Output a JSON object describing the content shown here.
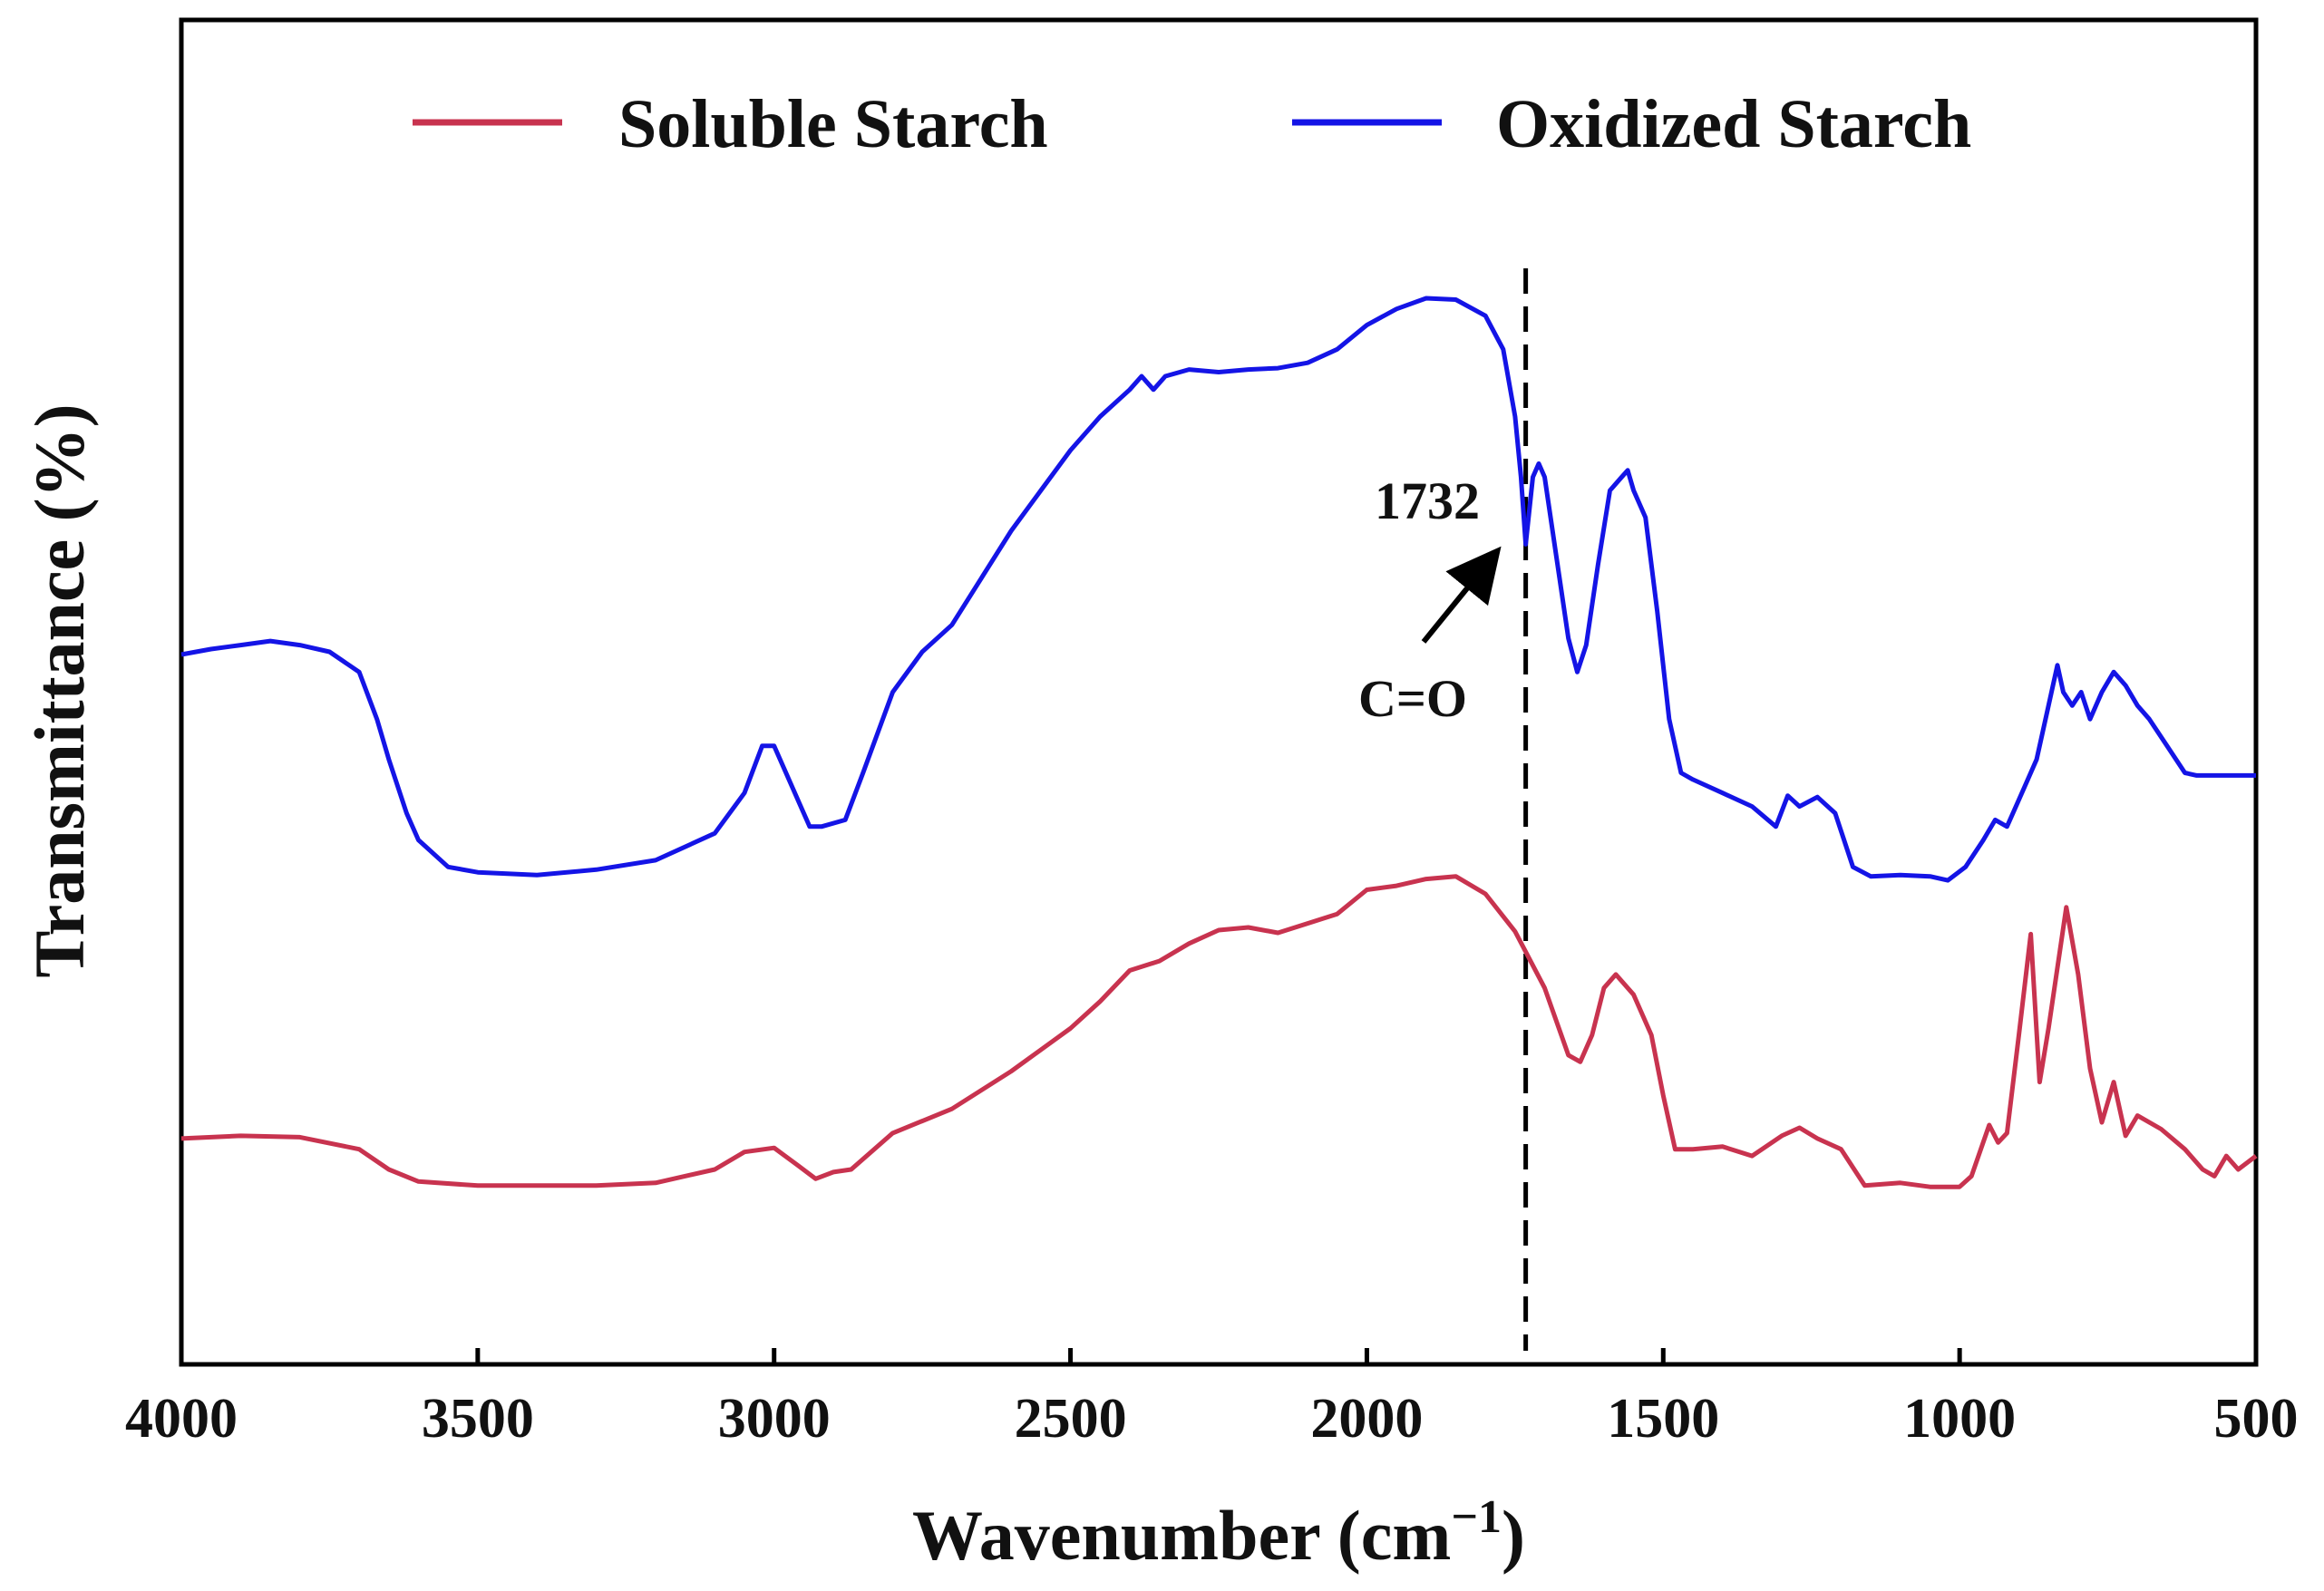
{
  "chart_data": {
    "type": "line",
    "title": "",
    "xlabel": "Wavenumber (cm",
    "xlabel_sup": "−1",
    "xlabel_close": ")",
    "ylabel": "Transmittance (%)",
    "xlim": [
      4000,
      500
    ],
    "ylim": [
      0,
      100
    ],
    "x_ticks": [
      4000,
      3500,
      3000,
      2500,
      2000,
      1500,
      1000,
      500
    ],
    "grid": false,
    "legend_position": "top",
    "series": [
      {
        "name": "Soluble Starch",
        "color": "#c8334f",
        "points": [
          [
            4000,
            16.8
          ],
          [
            3900,
            17.0
          ],
          [
            3800,
            16.9
          ],
          [
            3700,
            16.0
          ],
          [
            3650,
            14.5
          ],
          [
            3600,
            13.6
          ],
          [
            3500,
            13.3
          ],
          [
            3400,
            13.3
          ],
          [
            3300,
            13.3
          ],
          [
            3200,
            13.5
          ],
          [
            3100,
            14.5
          ],
          [
            3050,
            15.8
          ],
          [
            3000,
            16.1
          ],
          [
            2960,
            14.8
          ],
          [
            2930,
            13.8
          ],
          [
            2900,
            14.3
          ],
          [
            2870,
            14.5
          ],
          [
            2800,
            17.2
          ],
          [
            2700,
            19.0
          ],
          [
            2600,
            21.8
          ],
          [
            2500,
            25.0
          ],
          [
            2450,
            27.0
          ],
          [
            2400,
            29.3
          ],
          [
            2350,
            30.0
          ],
          [
            2300,
            31.3
          ],
          [
            2250,
            32.3
          ],
          [
            2200,
            32.5
          ],
          [
            2150,
            32.1
          ],
          [
            2100,
            32.8
          ],
          [
            2050,
            33.5
          ],
          [
            2000,
            35.3
          ],
          [
            1950,
            35.6
          ],
          [
            1900,
            36.1
          ],
          [
            1850,
            36.3
          ],
          [
            1800,
            35.0
          ],
          [
            1750,
            32.2
          ],
          [
            1700,
            28.0
          ],
          [
            1660,
            23.0
          ],
          [
            1640,
            22.5
          ],
          [
            1620,
            24.5
          ],
          [
            1600,
            28.0
          ],
          [
            1580,
            29.0
          ],
          [
            1550,
            27.5
          ],
          [
            1520,
            24.5
          ],
          [
            1500,
            20.0
          ],
          [
            1480,
            16.0
          ],
          [
            1450,
            16.0
          ],
          [
            1400,
            16.2
          ],
          [
            1350,
            15.5
          ],
          [
            1300,
            17.0
          ],
          [
            1270,
            17.6
          ],
          [
            1240,
            16.8
          ],
          [
            1200,
            16.0
          ],
          [
            1160,
            13.3
          ],
          [
            1100,
            13.5
          ],
          [
            1050,
            13.2
          ],
          [
            1000,
            13.2
          ],
          [
            980,
            14.0
          ],
          [
            950,
            17.8
          ],
          [
            935,
            16.5
          ],
          [
            920,
            17.2
          ],
          [
            900,
            24.5
          ],
          [
            880,
            32.0
          ],
          [
            865,
            21.0
          ],
          [
            850,
            25.0
          ],
          [
            820,
            34.0
          ],
          [
            800,
            29.0
          ],
          [
            780,
            22.0
          ],
          [
            760,
            18.0
          ],
          [
            740,
            21.0
          ],
          [
            720,
            17.0
          ],
          [
            700,
            18.5
          ],
          [
            660,
            17.5
          ],
          [
            620,
            16.0
          ],
          [
            590,
            14.5
          ],
          [
            570,
            14.0
          ],
          [
            550,
            15.5
          ],
          [
            530,
            14.5
          ],
          [
            500,
            15.5
          ]
        ]
      },
      {
        "name": "Oxidized Starch",
        "color": "#1414e6",
        "points": [
          [
            4000,
            52.8
          ],
          [
            3950,
            53.2
          ],
          [
            3900,
            53.5
          ],
          [
            3850,
            53.8
          ],
          [
            3800,
            53.5
          ],
          [
            3750,
            53.0
          ],
          [
            3700,
            51.5
          ],
          [
            3670,
            48.0
          ],
          [
            3650,
            45.0
          ],
          [
            3620,
            41.0
          ],
          [
            3600,
            39.0
          ],
          [
            3550,
            37.0
          ],
          [
            3500,
            36.6
          ],
          [
            3400,
            36.4
          ],
          [
            3300,
            36.8
          ],
          [
            3200,
            37.5
          ],
          [
            3100,
            39.5
          ],
          [
            3050,
            42.5
          ],
          [
            3020,
            46.0
          ],
          [
            3000,
            46.0
          ],
          [
            2970,
            43.0
          ],
          [
            2940,
            40.0
          ],
          [
            2920,
            40.0
          ],
          [
            2880,
            40.5
          ],
          [
            2850,
            44.0
          ],
          [
            2800,
            50.0
          ],
          [
            2750,
            53.0
          ],
          [
            2700,
            55.0
          ],
          [
            2650,
            58.5
          ],
          [
            2600,
            62.0
          ],
          [
            2550,
            65.0
          ],
          [
            2500,
            68.0
          ],
          [
            2450,
            70.5
          ],
          [
            2400,
            72.5
          ],
          [
            2380,
            73.5
          ],
          [
            2360,
            72.5
          ],
          [
            2340,
            73.5
          ],
          [
            2300,
            74.0
          ],
          [
            2250,
            73.8
          ],
          [
            2200,
            74.0
          ],
          [
            2150,
            74.1
          ],
          [
            2100,
            74.5
          ],
          [
            2050,
            75.5
          ],
          [
            2000,
            77.3
          ],
          [
            1950,
            78.5
          ],
          [
            1900,
            79.3
          ],
          [
            1850,
            79.2
          ],
          [
            1800,
            78.0
          ],
          [
            1770,
            75.5
          ],
          [
            1750,
            70.5
          ],
          [
            1740,
            66.0
          ],
          [
            1732,
            61.0
          ],
          [
            1720,
            66.0
          ],
          [
            1710,
            67.0
          ],
          [
            1700,
            66.0
          ],
          [
            1680,
            60.0
          ],
          [
            1660,
            54.0
          ],
          [
            1645,
            51.5
          ],
          [
            1630,
            53.5
          ],
          [
            1610,
            59.5
          ],
          [
            1590,
            65.0
          ],
          [
            1570,
            66.0
          ],
          [
            1560,
            66.5
          ],
          [
            1550,
            65.0
          ],
          [
            1530,
            63.0
          ],
          [
            1510,
            56.0
          ],
          [
            1490,
            48.0
          ],
          [
            1470,
            44.0
          ],
          [
            1450,
            43.5
          ],
          [
            1400,
            42.5
          ],
          [
            1350,
            41.5
          ],
          [
            1310,
            40.0
          ],
          [
            1290,
            42.3
          ],
          [
            1270,
            41.5
          ],
          [
            1240,
            42.2
          ],
          [
            1210,
            41.0
          ],
          [
            1180,
            37.0
          ],
          [
            1150,
            36.3
          ],
          [
            1100,
            36.4
          ],
          [
            1050,
            36.3
          ],
          [
            1020,
            36.0
          ],
          [
            990,
            37.0
          ],
          [
            960,
            39.0
          ],
          [
            940,
            40.5
          ],
          [
            920,
            40.0
          ],
          [
            890,
            43.0
          ],
          [
            870,
            45.0
          ],
          [
            850,
            49.0
          ],
          [
            835,
            52.0
          ],
          [
            825,
            50.0
          ],
          [
            810,
            49.0
          ],
          [
            795,
            50.0
          ],
          [
            780,
            48.0
          ],
          [
            760,
            50.0
          ],
          [
            740,
            51.5
          ],
          [
            720,
            50.5
          ],
          [
            700,
            49.0
          ],
          [
            680,
            48.0
          ],
          [
            650,
            46.0
          ],
          [
            620,
            44.0
          ],
          [
            600,
            43.8
          ],
          [
            550,
            43.8
          ],
          [
            500,
            43.8
          ]
        ]
      }
    ],
    "annotations": [
      {
        "text": "1732",
        "x": 1732
      },
      {
        "text": "C=O"
      }
    ],
    "marker_line_x": 1732
  }
}
